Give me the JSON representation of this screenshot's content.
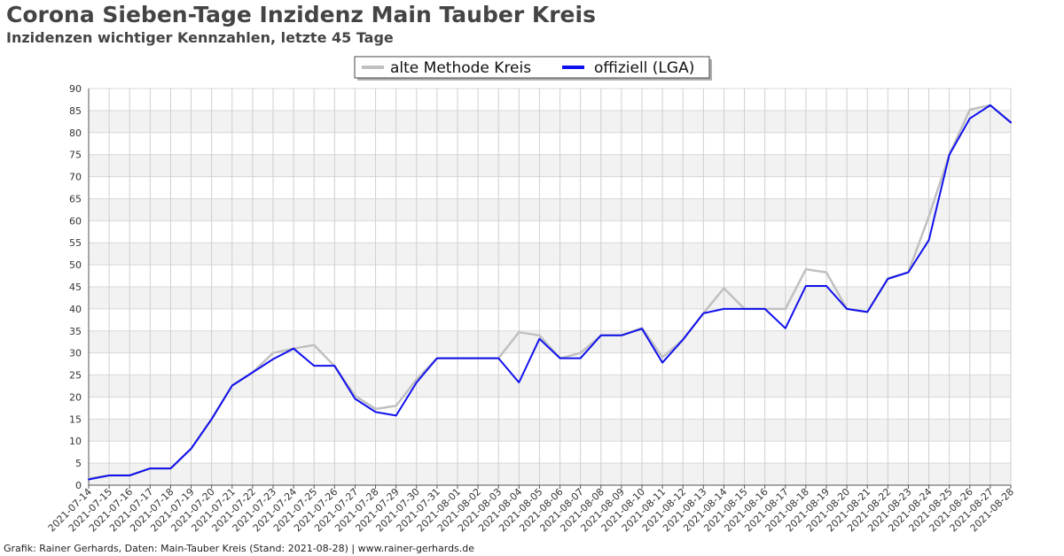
{
  "title": "Corona Sieben-Tage Inzidenz Main Tauber Kreis",
  "subtitle": "Inzidenzen wichtiger Kennzahlen, letzte 45 Tage",
  "footer": "Grafik: Rainer Gerhards, Daten: Main-Tauber Kreis (Stand: 2021-08-28) | www.rainer-gerhards.de",
  "chart_data": {
    "type": "line",
    "grid": true,
    "legend_position": "top-center",
    "ylim": [
      0,
      90
    ],
    "yticks": [
      0,
      5,
      10,
      15,
      20,
      25,
      30,
      35,
      40,
      45,
      50,
      55,
      60,
      65,
      70,
      75,
      80,
      85,
      90
    ],
    "x": [
      "2021-07-14",
      "2021-07-15",
      "2021-07-16",
      "2021-07-17",
      "2021-07-18",
      "2021-07-19",
      "2021-07-20",
      "2021-07-21",
      "2021-07-22",
      "2021-07-23",
      "2021-07-24",
      "2021-07-25",
      "2021-07-26",
      "2021-07-27",
      "2021-07-28",
      "2021-07-29",
      "2021-07-30",
      "2021-07-31",
      "2021-08-01",
      "2021-08-02",
      "2021-08-03",
      "2021-08-04",
      "2021-08-05",
      "2021-08-06",
      "2021-08-07",
      "2021-08-08",
      "2021-08-09",
      "2021-08-10",
      "2021-08-11",
      "2021-08-12",
      "2021-08-13",
      "2021-08-14",
      "2021-08-15",
      "2021-08-16",
      "2021-08-17",
      "2021-08-18",
      "2021-08-19",
      "2021-08-20",
      "2021-08-21",
      "2021-08-22",
      "2021-08-23",
      "2021-08-24",
      "2021-08-25",
      "2021-08-26",
      "2021-08-27",
      "2021-08-28"
    ],
    "series": [
      {
        "name": "alte Methode Kreis",
        "color": "#c0c0c0",
        "values": [
          1.5,
          2.2,
          2.2,
          3.8,
          3.8,
          8.3,
          15.0,
          22.6,
          25.6,
          30.0,
          31.0,
          31.8,
          27.0,
          20.3,
          17.3,
          18.0,
          24.0,
          28.8,
          28.8,
          28.8,
          28.8,
          34.7,
          34.0,
          28.8,
          30.0,
          34.0,
          34.0,
          35.7,
          29.0,
          33.0,
          39.0,
          44.7,
          40.0,
          40.0,
          40.0,
          49.0,
          48.3,
          40.0,
          39.3,
          46.9,
          48.3,
          61.0,
          75.0,
          85.2,
          86.2,
          82.3
        ]
      },
      {
        "name": "offiziell (LGA)",
        "color": "#1010ee",
        "values": [
          1.3,
          2.2,
          2.2,
          3.8,
          3.8,
          8.3,
          15.0,
          22.6,
          25.6,
          28.6,
          31.0,
          27.1,
          27.1,
          19.6,
          16.6,
          15.8,
          23.3,
          28.8,
          28.8,
          28.8,
          28.8,
          23.3,
          33.2,
          28.8,
          28.8,
          34.0,
          34.0,
          35.5,
          27.8,
          33.0,
          39.0,
          40.0,
          40.0,
          40.0,
          35.6,
          45.2,
          45.2,
          40.0,
          39.3,
          46.8,
          48.3,
          55.6,
          75.0,
          83.2,
          86.2,
          82.3
        ]
      }
    ]
  }
}
